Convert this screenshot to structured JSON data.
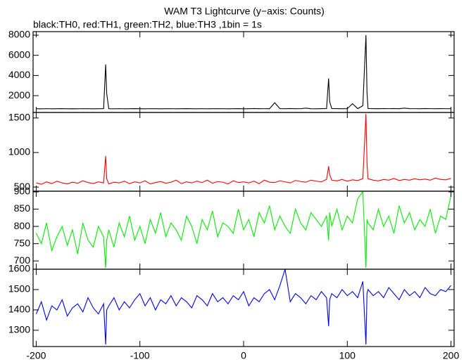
{
  "chart_data": [
    {
      "type": "line",
      "title": "WAM T3 Lightcurve (y−axis: Counts)",
      "subtitle": "black:TH0, red:TH1, green:TH2, blue:TH3 ,1bin = 1s",
      "x": [
        -200,
        -195,
        -190,
        -185,
        -180,
        -175,
        -170,
        -165,
        -160,
        -155,
        -150,
        -145,
        -140,
        -135,
        -133,
        -132,
        -130,
        -125,
        -120,
        -115,
        -110,
        -105,
        -100,
        -95,
        -90,
        -85,
        -80,
        -75,
        -70,
        -65,
        -60,
        -55,
        -50,
        -45,
        -40,
        -35,
        -30,
        -25,
        -20,
        -15,
        -10,
        -5,
        0,
        5,
        10,
        15,
        20,
        25,
        30,
        35,
        40,
        45,
        50,
        55,
        60,
        65,
        70,
        75,
        80,
        82,
        83,
        85,
        90,
        95,
        100,
        105,
        110,
        115,
        118,
        119,
        120,
        125,
        130,
        135,
        140,
        145,
        150,
        155,
        160,
        165,
        170,
        175,
        180,
        185,
        190,
        195,
        200
      ],
      "values": [
        700,
        690,
        705,
        695,
        700,
        710,
        690,
        700,
        695,
        705,
        700,
        690,
        700,
        710,
        5100,
        2200,
        700,
        695,
        705,
        690,
        700,
        710,
        700,
        695,
        705,
        700,
        690,
        700,
        705,
        695,
        700,
        710,
        700,
        695,
        705,
        690,
        700,
        700,
        705,
        695,
        700,
        710,
        690,
        700,
        720,
        700,
        705,
        700,
        1300,
        710,
        700,
        720,
        700,
        705,
        760,
        700,
        695,
        710,
        720,
        3700,
        1400,
        720,
        710,
        700,
        705,
        1200,
        710,
        1000,
        8000,
        2300,
        720,
        710,
        700,
        715,
        705,
        720,
        700,
        760,
        710,
        705,
        700,
        715,
        705,
        700,
        710,
        705,
        700
      ],
      "color": "#000000",
      "xlim": [
        -203,
        203
      ],
      "ylim": [
        330,
        8350
      ],
      "yticks": [
        2000,
        4000,
        6000,
        8000
      ]
    },
    {
      "type": "line",
      "x": [
        -200,
        -195,
        -190,
        -185,
        -180,
        -175,
        -170,
        -165,
        -160,
        -155,
        -150,
        -145,
        -140,
        -135,
        -133,
        -132,
        -130,
        -125,
        -120,
        -115,
        -110,
        -105,
        -100,
        -95,
        -90,
        -85,
        -80,
        -75,
        -70,
        -65,
        -60,
        -55,
        -50,
        -45,
        -40,
        -35,
        -30,
        -25,
        -20,
        -15,
        -10,
        -5,
        0,
        5,
        10,
        15,
        20,
        25,
        30,
        35,
        40,
        45,
        50,
        55,
        60,
        65,
        70,
        75,
        80,
        82,
        83,
        85,
        90,
        95,
        100,
        105,
        110,
        115,
        118,
        119,
        120,
        125,
        130,
        135,
        140,
        145,
        150,
        155,
        160,
        165,
        170,
        175,
        180,
        185,
        190,
        195,
        200
      ],
      "values": [
        560,
        540,
        575,
        550,
        585,
        560,
        545,
        570,
        555,
        590,
        565,
        550,
        575,
        560,
        950,
        620,
        545,
        570,
        560,
        585,
        550,
        575,
        560,
        590,
        545,
        565,
        580,
        555,
        570,
        600,
        550,
        575,
        560,
        585,
        565,
        600,
        555,
        580,
        570,
        545,
        590,
        565,
        575,
        560,
        585,
        550,
        600,
        570,
        565,
        590,
        575,
        560,
        595,
        580,
        570,
        600,
        585,
        575,
        610,
        800,
        680,
        600,
        590,
        610,
        585,
        605,
        595,
        620,
        1560,
        850,
        620,
        600,
        590,
        610,
        600,
        625,
        595,
        610,
        600,
        620,
        605,
        615,
        600,
        630,
        610,
        605,
        625
      ],
      "color": "#ff0000",
      "xlim": [
        -203,
        203
      ],
      "ylim": [
        440,
        1580
      ],
      "yticks": [
        500,
        1000,
        1500
      ]
    },
    {
      "type": "line",
      "x": [
        -200,
        -195,
        -190,
        -185,
        -180,
        -175,
        -170,
        -165,
        -160,
        -155,
        -150,
        -145,
        -140,
        -135,
        -133,
        -132,
        -130,
        -125,
        -120,
        -115,
        -110,
        -105,
        -100,
        -95,
        -90,
        -85,
        -80,
        -75,
        -70,
        -65,
        -60,
        -55,
        -50,
        -45,
        -40,
        -35,
        -30,
        -25,
        -20,
        -15,
        -10,
        -5,
        0,
        5,
        10,
        15,
        20,
        25,
        30,
        35,
        40,
        45,
        50,
        55,
        60,
        65,
        70,
        75,
        80,
        82,
        83,
        85,
        90,
        95,
        100,
        105,
        110,
        115,
        118,
        119,
        120,
        125,
        130,
        135,
        140,
        145,
        150,
        155,
        160,
        165,
        170,
        175,
        180,
        185,
        190,
        195,
        200
      ],
      "values": [
        780,
        750,
        810,
        730,
        770,
        800,
        745,
        790,
        720,
        810,
        760,
        740,
        800,
        770,
        680,
        760,
        790,
        740,
        810,
        770,
        830,
        760,
        800,
        750,
        820,
        780,
        840,
        770,
        810,
        790,
        760,
        830,
        800,
        750,
        820,
        790,
        845,
        770,
        810,
        800,
        780,
        850,
        790,
        820,
        770,
        840,
        810,
        860,
        790,
        830,
        800,
        780,
        850,
        810,
        790,
        840,
        820,
        800,
        830,
        760,
        840,
        800,
        850,
        790,
        830,
        810,
        880,
        900,
        680,
        820,
        810,
        790,
        850,
        800,
        830,
        780,
        860,
        810,
        840,
        790,
        820,
        800,
        850,
        780,
        830,
        820,
        890
      ],
      "color": "#00ee00",
      "xlim": [
        -203,
        203
      ],
      "ylim": [
        676,
        902
      ],
      "yticks": [
        700,
        750,
        800,
        850,
        900
      ]
    },
    {
      "type": "line",
      "x": [
        -200,
        -195,
        -190,
        -185,
        -180,
        -175,
        -170,
        -165,
        -160,
        -155,
        -150,
        -145,
        -140,
        -135,
        -133,
        -132,
        -130,
        -125,
        -120,
        -115,
        -110,
        -105,
        -100,
        -95,
        -90,
        -85,
        -80,
        -75,
        -70,
        -65,
        -60,
        -55,
        -50,
        -45,
        -40,
        -35,
        -30,
        -25,
        -20,
        -15,
        -10,
        -5,
        0,
        5,
        10,
        15,
        20,
        25,
        30,
        35,
        40,
        45,
        50,
        55,
        60,
        65,
        70,
        75,
        80,
        82,
        83,
        85,
        90,
        95,
        100,
        105,
        110,
        115,
        118,
        119,
        120,
        125,
        130,
        135,
        140,
        145,
        150,
        155,
        160,
        165,
        170,
        175,
        180,
        185,
        190,
        195,
        200
      ],
      "values": [
        1380,
        1440,
        1350,
        1420,
        1400,
        1450,
        1370,
        1410,
        1430,
        1390,
        1460,
        1410,
        1380,
        1430,
        1230,
        1400,
        1420,
        1460,
        1400,
        1440,
        1410,
        1450,
        1480,
        1420,
        1460,
        1400,
        1450,
        1430,
        1470,
        1420,
        1460,
        1440,
        1410,
        1470,
        1450,
        1420,
        1480,
        1440,
        1460,
        1430,
        1470,
        1450,
        1490,
        1420,
        1460,
        1440,
        1480,
        1500,
        1450,
        1520,
        1600,
        1440,
        1480,
        1460,
        1430,
        1470,
        1450,
        1490,
        1460,
        1320,
        1450,
        1480,
        1460,
        1500,
        1470,
        1490,
        1460,
        1540,
        1230,
        1480,
        1500,
        1470,
        1490,
        1460,
        1510,
        1480,
        1450,
        1500,
        1470,
        1490,
        1460,
        1510,
        1480,
        1470,
        1500,
        1490,
        1520
      ],
      "color": "#0000ee",
      "xlim": [
        -203,
        203
      ],
      "ylim": [
        1220,
        1600
      ],
      "yticks": [
        1300,
        1400,
        1500,
        1600
      ],
      "xticks": [
        -200,
        -100,
        0,
        100,
        200
      ]
    }
  ]
}
